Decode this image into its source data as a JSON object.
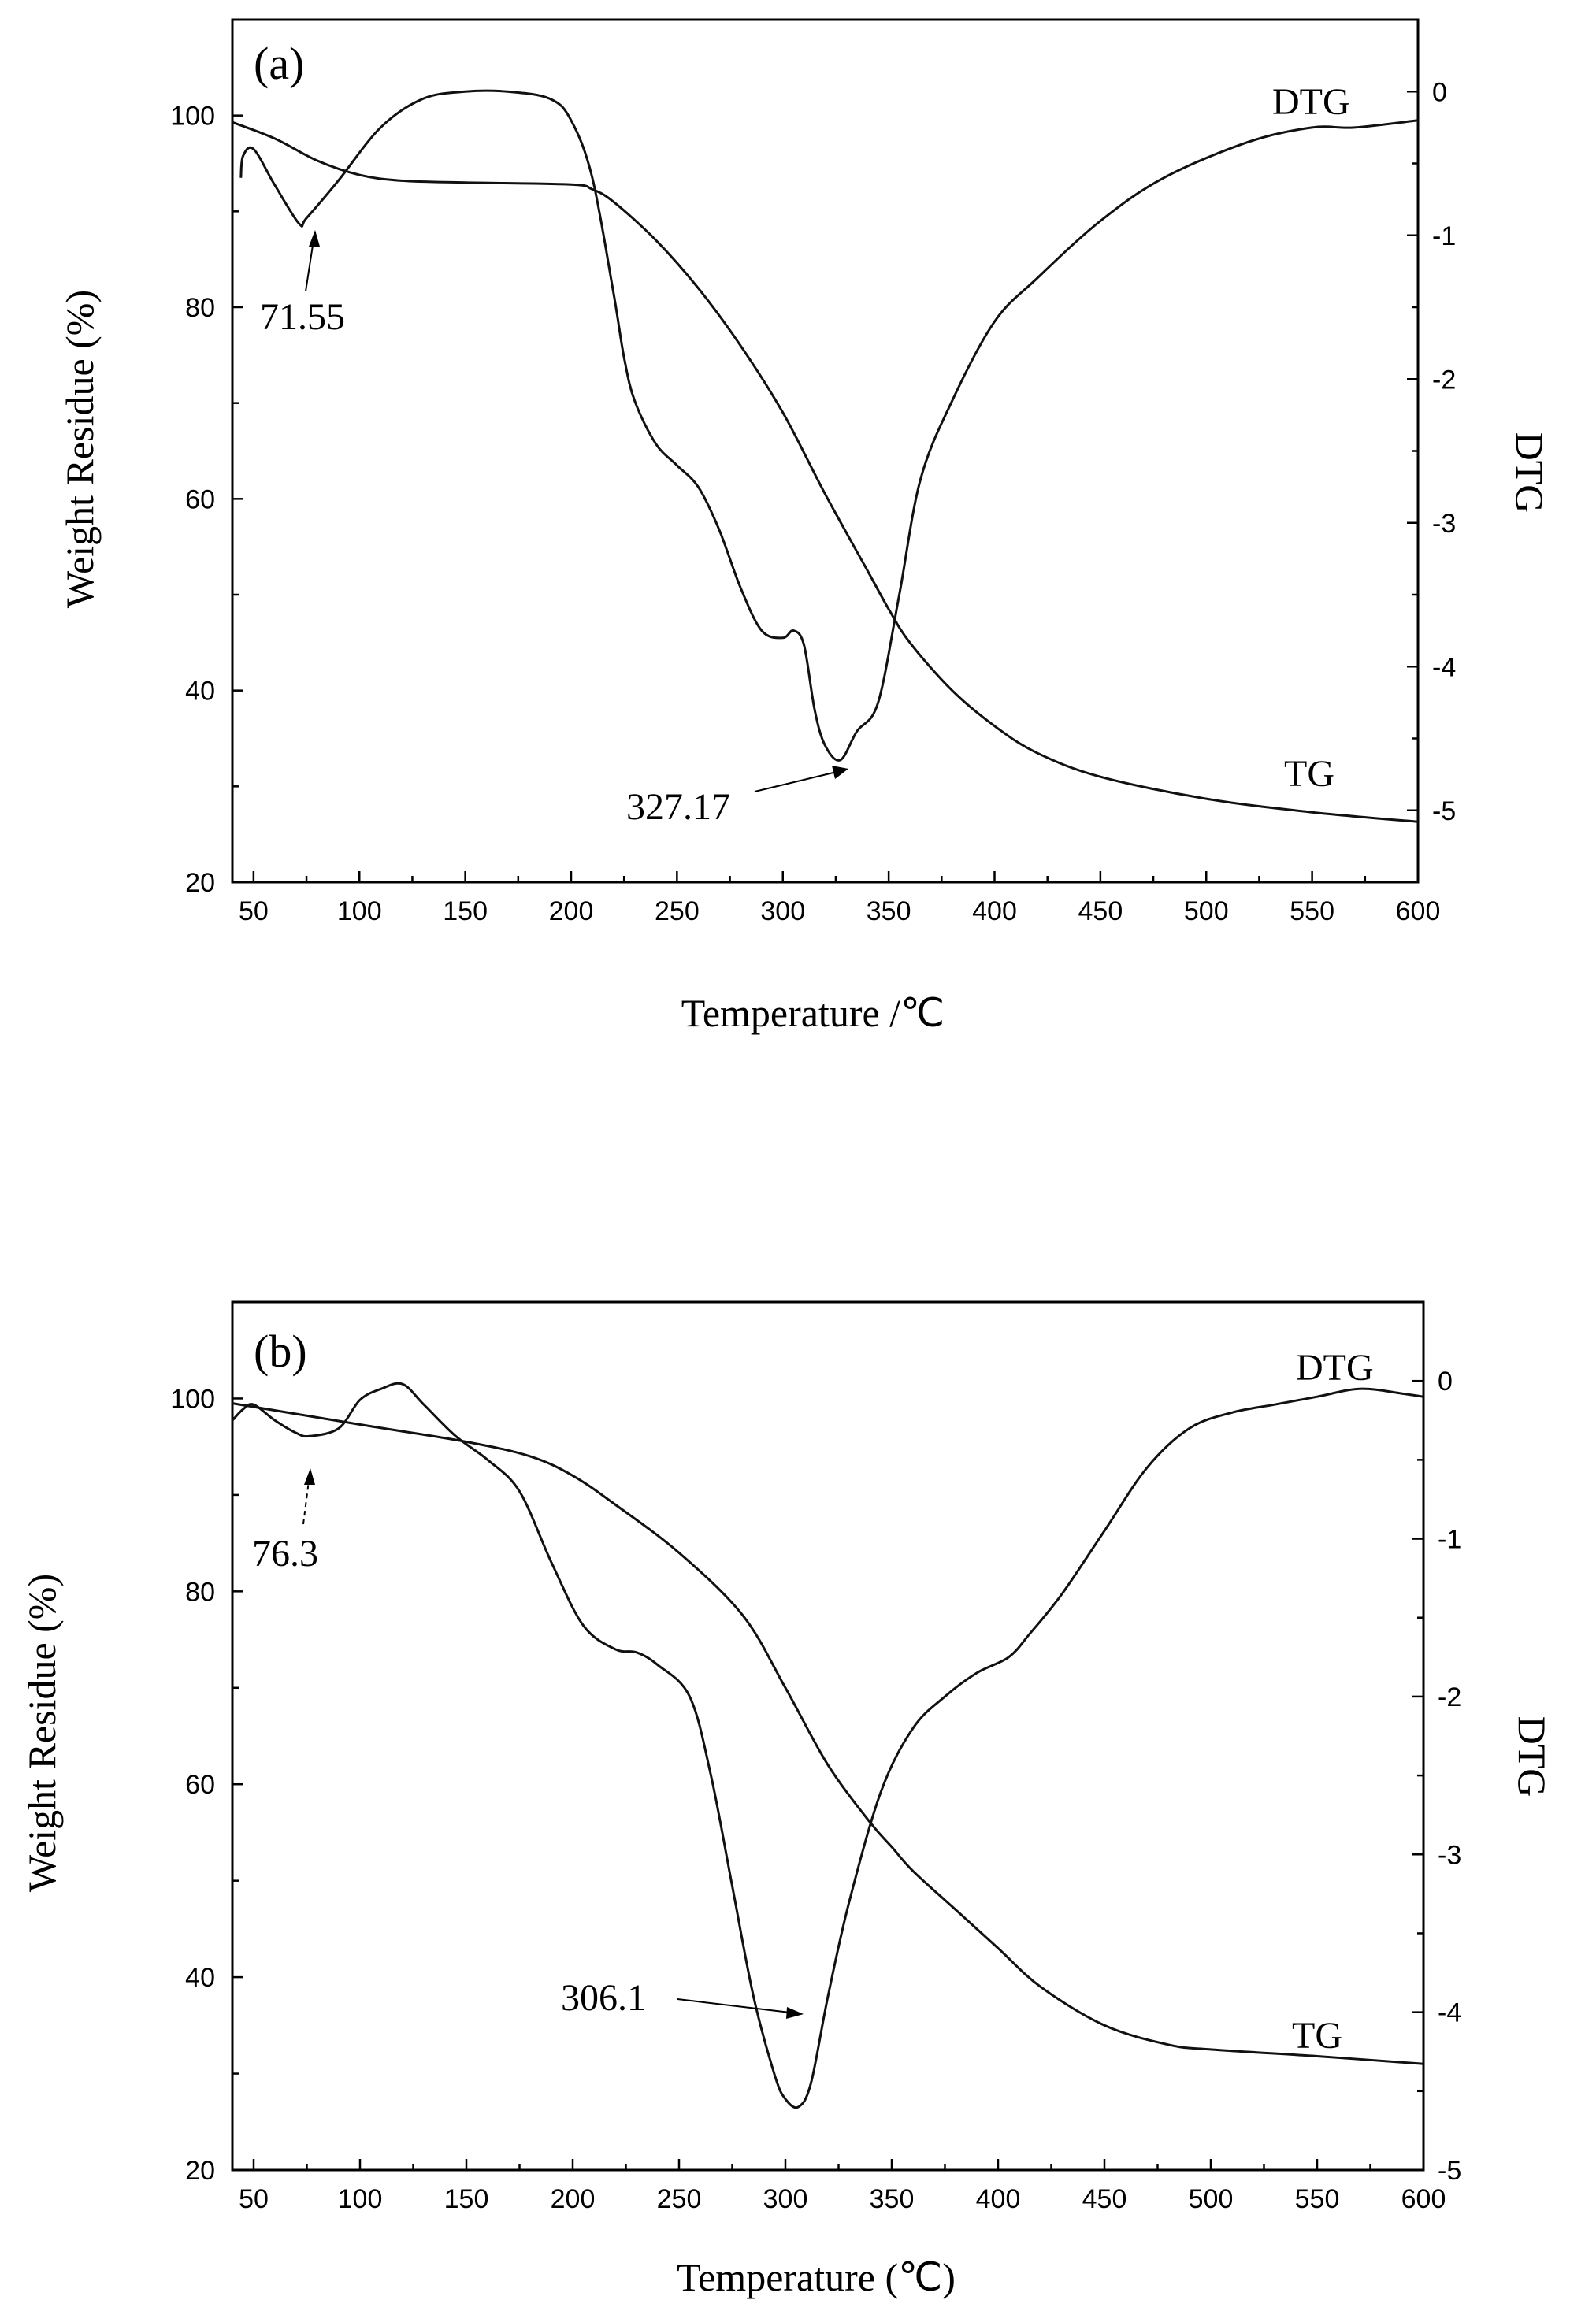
{
  "colors": {
    "line": "#111111",
    "background": "#ffffff"
  },
  "chart_data": [
    {
      "type": "line",
      "panel_label": "(a)",
      "xlabel": "Temperature /℃",
      "ylabel": "Weight Residue (%)",
      "y2label": "DTG",
      "xlim": [
        40,
        600
      ],
      "ylim": [
        20,
        110
      ],
      "y2lim": [
        -5.5,
        0.5
      ],
      "xticks": [
        50,
        100,
        150,
        200,
        250,
        300,
        350,
        400,
        450,
        500,
        550,
        600
      ],
      "yticks": [
        20,
        40,
        60,
        80,
        100
      ],
      "y2ticks": [
        0,
        -1,
        -2,
        -3,
        -4,
        -5
      ],
      "series": [
        {
          "name": "TG",
          "axis": "left",
          "x": [
            40,
            60,
            80,
            100,
            120,
            150,
            200,
            210,
            220,
            240,
            260,
            280,
            300,
            320,
            340,
            350,
            360,
            380,
            400,
            420,
            450,
            500,
            550,
            600
          ],
          "values": [
            99.3,
            97.6,
            95.3,
            93.8,
            93.2,
            93.0,
            92.8,
            92.3,
            91.0,
            87.0,
            82.0,
            76.0,
            69.0,
            60.5,
            52.5,
            48.5,
            45.0,
            40.0,
            36.3,
            33.5,
            31.0,
            28.7,
            27.3,
            26.3
          ]
        },
        {
          "name": "DTG",
          "axis": "right",
          "x": [
            44,
            45,
            50,
            60,
            71.55,
            75,
            90,
            110,
            130,
            150,
            170,
            190,
            200,
            210,
            220,
            225,
            230,
            240,
            250,
            260,
            270,
            280,
            290,
            300,
            305,
            310,
            315,
            320,
            327.17,
            335,
            345,
            355,
            365,
            380,
            400,
            420,
            450,
            480,
            520,
            550,
            570,
            600
          ],
          "values": [
            -0.6,
            -0.45,
            -0.4,
            -0.65,
            -0.92,
            -0.88,
            -0.62,
            -0.25,
            -0.05,
            0.0,
            0.0,
            -0.05,
            -0.2,
            -0.6,
            -1.4,
            -1.85,
            -2.15,
            -2.45,
            -2.6,
            -2.75,
            -3.05,
            -3.45,
            -3.75,
            -3.8,
            -3.75,
            -3.85,
            -4.3,
            -4.55,
            -4.65,
            -4.45,
            -4.25,
            -3.5,
            -2.7,
            -2.15,
            -1.6,
            -1.3,
            -0.9,
            -0.6,
            -0.35,
            -0.25,
            -0.25,
            -0.2
          ]
        }
      ],
      "annotations": [
        {
          "text": "71.55",
          "x": 71.55,
          "y2": -0.92
        },
        {
          "text": "327.17",
          "x": 327.17,
          "y2": -4.65
        }
      ]
    },
    {
      "type": "line",
      "panel_label": "(b)",
      "xlabel": "Temperature (℃)",
      "ylabel": "Weight Residue (%)",
      "y2label": "DTG",
      "xlim": [
        40,
        600
      ],
      "ylim": [
        20,
        110
      ],
      "y2lim": [
        -5,
        0.5
      ],
      "xticks": [
        50,
        100,
        150,
        200,
        250,
        300,
        350,
        400,
        450,
        500,
        550,
        600
      ],
      "yticks": [
        20,
        40,
        60,
        80,
        100
      ],
      "y2ticks": [
        0,
        -1,
        -2,
        -3,
        -4,
        -5
      ],
      "series": [
        {
          "name": "TG",
          "axis": "left",
          "x": [
            40,
            100,
            150,
            180,
            200,
            220,
            250,
            280,
            300,
            320,
            340,
            350,
            360,
            380,
            400,
            420,
            450,
            480,
            500,
            550,
            600
          ],
          "values": [
            99.5,
            97.3,
            95.5,
            94.0,
            92.0,
            89.0,
            84.0,
            77.5,
            70.0,
            62.0,
            56.0,
            53.5,
            51.0,
            47.0,
            43.0,
            39.0,
            35.0,
            33.0,
            32.5,
            31.8,
            31.0
          ]
        },
        {
          "name": "DTG",
          "axis": "right",
          "x": [
            40,
            45,
            50,
            60,
            70,
            76.3,
            90,
            100,
            110,
            120,
            130,
            145,
            160,
            175,
            190,
            205,
            220,
            230,
            240,
            255,
            265,
            275,
            285,
            295,
            300,
            306.1,
            312,
            320,
            330,
            345,
            360,
            375,
            390,
            405,
            415,
            430,
            450,
            470,
            490,
            510,
            530,
            550,
            570,
            590,
            600
          ],
          "values": [
            -0.25,
            -0.18,
            -0.15,
            -0.25,
            -0.33,
            -0.35,
            -0.3,
            -0.12,
            -0.05,
            -0.02,
            -0.15,
            -0.35,
            -0.5,
            -0.7,
            -1.15,
            -1.55,
            -1.7,
            -1.72,
            -1.8,
            -2.0,
            -2.5,
            -3.2,
            -3.9,
            -4.4,
            -4.55,
            -4.6,
            -4.45,
            -3.9,
            -3.3,
            -2.6,
            -2.2,
            -2.0,
            -1.85,
            -1.75,
            -1.6,
            -1.35,
            -0.95,
            -0.55,
            -0.3,
            -0.2,
            -0.15,
            -0.1,
            -0.05,
            -0.08,
            -0.1
          ]
        }
      ],
      "annotations": [
        {
          "text": "76.3",
          "x": 76.3,
          "y2": -0.35
        },
        {
          "text": "306.1",
          "x": 306.1,
          "y2": -4.6
        }
      ]
    }
  ]
}
